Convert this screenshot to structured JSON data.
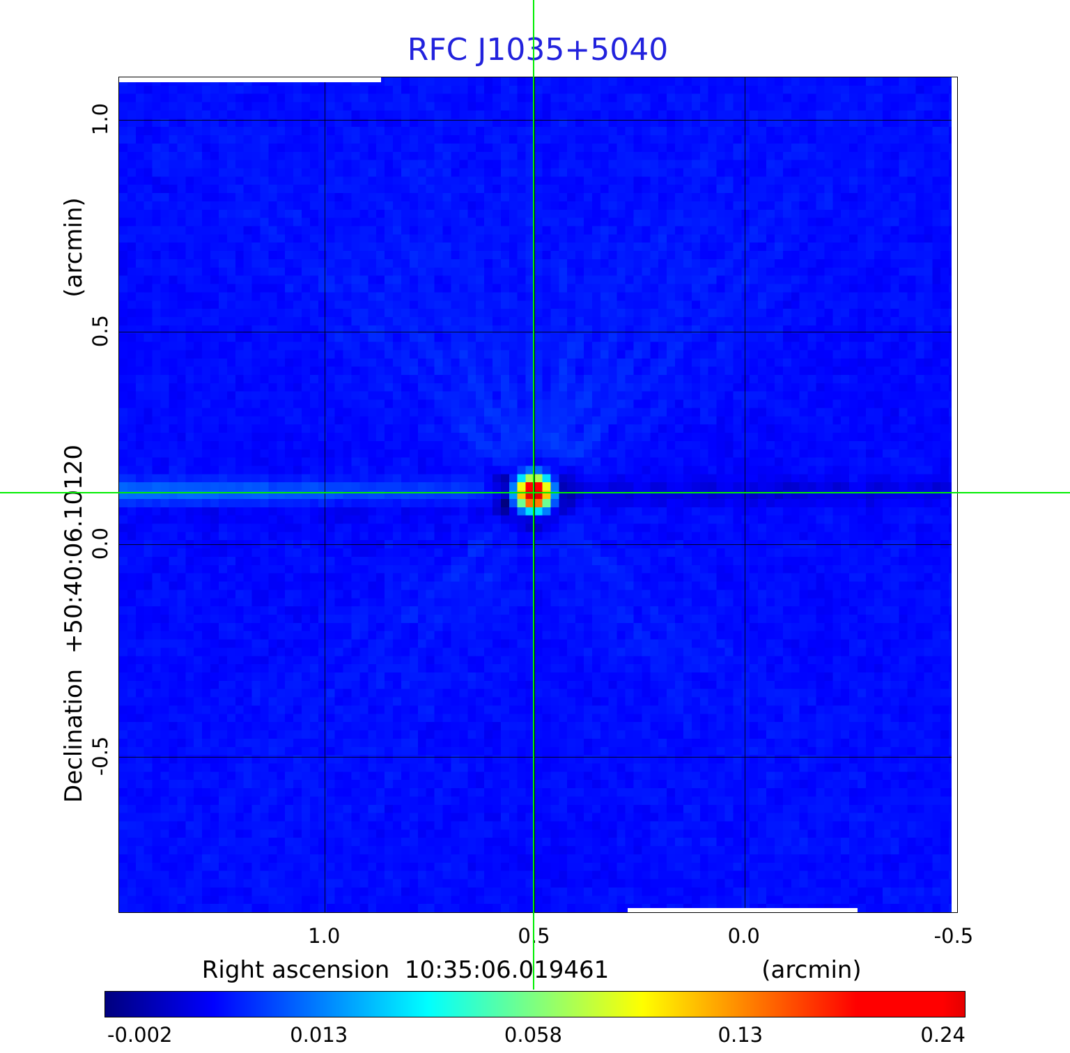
{
  "title": "RFC J1035+5040",
  "colors": {
    "title": "#2222dd",
    "crosshair": "#00ee00",
    "grid": "#000000",
    "figure_background": "#ffffff"
  },
  "axes": {
    "x_label": "Right ascension  10:35:06.019461",
    "x_unit": "(arcmin)",
    "y_label": "Declination  +50:40:06.10120",
    "y_unit": "(arcmin)"
  },
  "chart_data": {
    "type": "heatmap",
    "title": "RFC J1035+5040",
    "xlabel": "Right ascension 10:35:06.019461 (arcmin)",
    "ylabel": "Declination +50:40:06.10120 (arcmin)",
    "x_ticks": [
      1.0,
      0.5,
      0.0,
      -0.5
    ],
    "x_tick_labels": [
      "1.0",
      "0.5",
      "0.0",
      "-0.5"
    ],
    "y_ticks": [
      1.0,
      0.5,
      0.0,
      -0.5
    ],
    "y_tick_labels": [
      "1.0",
      "0.5",
      "0.0",
      "-0.5"
    ],
    "x_range_arcmin": [
      1.49,
      -0.51
    ],
    "y_range_arcmin": [
      1.1,
      -0.87
    ],
    "grid": true,
    "colormap": "jet",
    "intensity_scale": "sqrt",
    "value_min": -0.002,
    "value_max": 0.24,
    "colorbar_ticks": [
      -0.002,
      0.013,
      0.058,
      0.13,
      0.24
    ],
    "colorbar_tick_labels": [
      "-0.002",
      "0.013",
      "0.058",
      "0.13",
      "0.24"
    ],
    "source": {
      "name": "RFC J1035+5040",
      "peak_value": 0.24,
      "x_arcmin": 0.5,
      "y_arcmin": 0.12
    },
    "crosshair_arcmin": {
      "x": 0.5,
      "y": 0.12
    },
    "legend": "none"
  }
}
